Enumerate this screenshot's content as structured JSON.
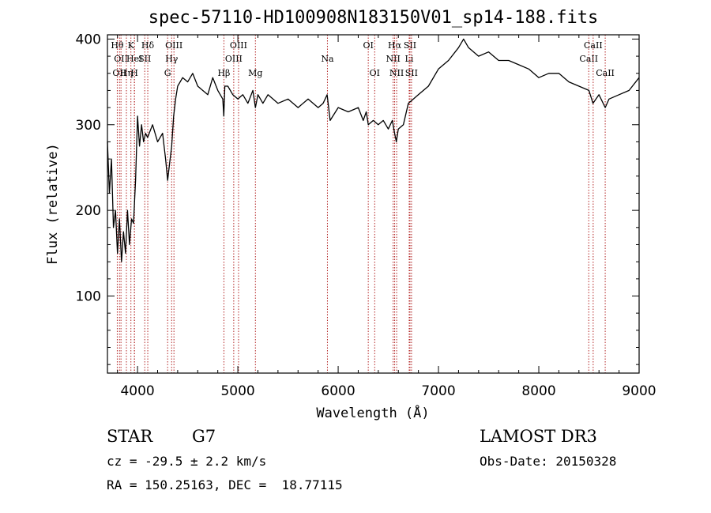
{
  "chart_data": {
    "type": "line",
    "title": "spec-57110-HD100908N183150V01_sp14-188.fits",
    "xlabel": "Wavelength (Å)",
    "ylabel": "Flux (relative)",
    "xlim": [
      3700,
      9000
    ],
    "ylim": [
      10,
      405
    ],
    "x_ticks": [
      4000,
      5000,
      6000,
      7000,
      8000,
      9000
    ],
    "y_ticks": [
      100,
      200,
      300,
      400
    ],
    "grid": false,
    "series": [
      {
        "x": [
          3700,
          3720,
          3740,
          3760,
          3780,
          3800,
          3820,
          3840,
          3860,
          3880,
          3900,
          3920,
          3940,
          3960,
          3980,
          4000,
          4020,
          4040,
          4060,
          4080,
          4100,
          4150,
          4200,
          4250,
          4280,
          4300,
          4320,
          4340,
          4360,
          4380,
          4400,
          4450,
          4500,
          4550,
          4600,
          4650,
          4700,
          4750,
          4800,
          4850,
          4860,
          4870,
          4900,
          4950,
          5000,
          5050,
          5100,
          5150,
          5175,
          5200,
          5250,
          5300,
          5400,
          5500,
          5600,
          5700,
          5800,
          5850,
          5890,
          5920,
          6000,
          6100,
          6200,
          6250,
          6280,
          6300,
          6350,
          6400,
          6450,
          6500,
          6540,
          6563,
          6580,
          6600,
          6650,
          6700,
          6750,
          6800,
          6900,
          7000,
          7100,
          7200,
          7250,
          7300,
          7400,
          7500,
          7600,
          7700,
          7800,
          7900,
          8000,
          8100,
          8200,
          8300,
          8400,
          8500,
          8540,
          8600,
          8662,
          8700,
          8800,
          8900,
          9000
        ],
        "y": [
          280,
          220,
          260,
          180,
          200,
          150,
          190,
          140,
          175,
          150,
          200,
          160,
          190,
          185,
          235,
          310,
          275,
          300,
          280,
          290,
          285,
          300,
          280,
          290,
          260,
          235,
          255,
          275,
          310,
          330,
          345,
          355,
          350,
          360,
          345,
          340,
          335,
          355,
          340,
          330,
          310,
          345,
          345,
          335,
          330,
          335,
          325,
          340,
          320,
          335,
          325,
          335,
          325,
          330,
          320,
          330,
          320,
          325,
          335,
          305,
          320,
          315,
          320,
          305,
          315,
          300,
          305,
          300,
          305,
          295,
          305,
          290,
          280,
          295,
          300,
          325,
          330,
          335,
          345,
          365,
          375,
          390,
          400,
          390,
          380,
          385,
          375,
          375,
          370,
          365,
          355,
          360,
          360,
          350,
          345,
          340,
          325,
          335,
          320,
          330,
          335,
          340,
          355
        ],
        "color": "#000000"
      }
    ],
    "lines": [
      {
        "wavelength": 3798,
        "label": "Hθ",
        "row": 1
      },
      {
        "wavelength": 3820,
        "label": "OII",
        "row": 3
      },
      {
        "wavelength": 3835,
        "label": "OII",
        "row": 2
      },
      {
        "wavelength": 3889,
        "label": "Hη",
        "row": 3
      },
      {
        "wavelength": 3934,
        "label": "K",
        "row": 1
      },
      {
        "wavelength": 3968,
        "label": "H",
        "row": 3
      },
      {
        "wavelength": 3970,
        "label": "HeI",
        "row": 2
      },
      {
        "wavelength": 4072,
        "label": "SII",
        "row": 2
      },
      {
        "wavelength": 4102,
        "label": "Hδ",
        "row": 1
      },
      {
        "wavelength": 4300,
        "label": "G",
        "row": 3
      },
      {
        "wavelength": 4340,
        "label": "Hγ",
        "row": 2
      },
      {
        "wavelength": 4363,
        "label": "OIII",
        "row": 1
      },
      {
        "wavelength": 4861,
        "label": "Hβ",
        "row": 3
      },
      {
        "wavelength": 4959,
        "label": "OIII",
        "row": 2
      },
      {
        "wavelength": 5007,
        "label": "OIII",
        "row": 1
      },
      {
        "wavelength": 5175,
        "label": "Mg",
        "row": 3
      },
      {
        "wavelength": 5893,
        "label": "Na",
        "row": 2
      },
      {
        "wavelength": 6300,
        "label": "OI",
        "row": 1
      },
      {
        "wavelength": 6364,
        "label": "OI",
        "row": 3
      },
      {
        "wavelength": 6548,
        "label": "NII",
        "row": 2
      },
      {
        "wavelength": 6563,
        "label": "Hα",
        "row": 1
      },
      {
        "wavelength": 6583,
        "label": "NII",
        "row": 3
      },
      {
        "wavelength": 6708,
        "label": "Li",
        "row": 2
      },
      {
        "wavelength": 6716,
        "label": "SII",
        "row": 1
      },
      {
        "wavelength": 6731,
        "label": "SII",
        "row": 3
      },
      {
        "wavelength": 8498,
        "label": "CaII",
        "row": 2
      },
      {
        "wavelength": 8542,
        "label": "CaII",
        "row": 1
      },
      {
        "wavelength": 8662,
        "label": "CaII",
        "row": 3
      }
    ]
  },
  "info": {
    "object_class": "STAR",
    "subclass": "G7",
    "survey": "LAMOST DR3",
    "cz": "cz = -29.5 ± 2.2 km/s",
    "obs_date": "Obs-Date: 20150328",
    "coords": "RA = 150.25163, DEC =  18.77115"
  },
  "colors": {
    "line_marker": "#b22222",
    "spectrum": "#000000"
  }
}
